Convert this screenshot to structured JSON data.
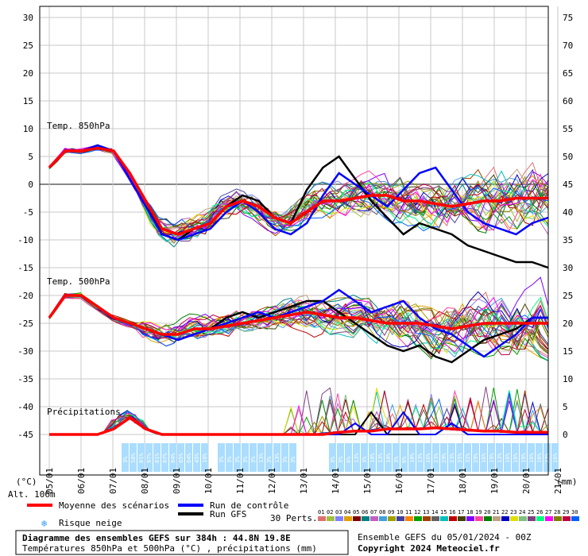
{
  "chart_data": {
    "type": "line",
    "left_axis": {
      "label": "(°C)",
      "ticks": [
        30,
        25,
        20,
        15,
        10,
        5,
        0,
        -5,
        -10,
        -15,
        -20,
        -25,
        -30,
        -35,
        -40,
        -45
      ]
    },
    "right_axis": {
      "label": "(mm)",
      "ticks": [
        75,
        70,
        65,
        60,
        55,
        50,
        45,
        40,
        35,
        30,
        25,
        20,
        15,
        10,
        5,
        0
      ]
    },
    "x_dates": [
      "05/01",
      "06/01",
      "07/01",
      "08/01",
      "09/01",
      "10/01",
      "11/01",
      "12/01",
      "13/01",
      "14/01",
      "15/01",
      "16/01",
      "17/01",
      "18/01",
      "19/01",
      "20/01",
      "21/01"
    ],
    "panel_labels": {
      "t850": "Temp. 850hPa",
      "t500": "Temp. 500hPa",
      "precip": "Précipitations"
    },
    "step_hours": 6,
    "t850": {
      "mean": [
        3,
        6,
        6,
        6.5,
        6,
        2,
        -3,
        -8,
        -9,
        -8,
        -7,
        -4,
        -3,
        -4,
        -6,
        -7,
        -5,
        -3,
        -3,
        -2.5,
        -2,
        -2,
        -3,
        -3,
        -3.5,
        -4,
        -3.5,
        -3,
        -3,
        -2.5,
        -2.5,
        -2.5
      ],
      "control": [
        3,
        6,
        6,
        7,
        6,
        1,
        -4,
        -9,
        -10,
        -9,
        -8,
        -5,
        -3,
        -5,
        -8,
        -9,
        -7,
        -2,
        2,
        0,
        -2,
        -4,
        -1,
        2,
        3,
        -1,
        -5,
        -7,
        -8,
        -9,
        -7,
        -6
      ],
      "gfs": [
        3,
        6,
        6,
        7,
        6,
        2,
        -3,
        -9,
        -10,
        -8,
        -7,
        -4,
        -2,
        -3,
        -6,
        -7,
        -1,
        3,
        5,
        1,
        -3,
        -6,
        -9,
        -7,
        -8,
        -9,
        -11,
        -12,
        -13,
        -14,
        -14,
        -15
      ]
    },
    "t500": {
      "mean": [
        -24,
        -20,
        -20,
        -22,
        -24,
        -25,
        -26,
        -27,
        -27,
        -26,
        -26,
        -25.5,
        -25,
        -24.5,
        -24,
        -23.5,
        -23,
        -23.5,
        -24,
        -24,
        -24.5,
        -25,
        -25,
        -25,
        -25.5,
        -26,
        -25.5,
        -25,
        -25,
        -25,
        -25,
        -25
      ],
      "control": [
        -24,
        -20,
        -20,
        -22,
        -24,
        -25,
        -26,
        -27,
        -28,
        -27,
        -26,
        -25,
        -24,
        -23,
        -24,
        -23,
        -22,
        -21,
        -19,
        -21,
        -23,
        -22,
        -21,
        -24,
        -26,
        -27,
        -29,
        -31,
        -29,
        -27,
        -24,
        -24
      ],
      "gfs": [
        -24,
        -20,
        -20,
        -22,
        -24,
        -25,
        -26,
        -27,
        -27,
        -26,
        -26,
        -24,
        -23,
        -24,
        -23,
        -22,
        -21,
        -21,
        -23,
        -25,
        -27,
        -29,
        -30,
        -29,
        -31,
        -32,
        -30,
        -28,
        -27,
        -26,
        -24,
        -24
      ]
    },
    "precip": {
      "mean": [
        0,
        0,
        0,
        0,
        0.5,
        1.5,
        0.5,
        0,
        0,
        0,
        0,
        0,
        0,
        0,
        0,
        0,
        0,
        0,
        0.2,
        0.3,
        0.3,
        0.5,
        0.5,
        0.5,
        0.6,
        0.5,
        0.4,
        0.3,
        0.3,
        0.2,
        0.2,
        0.2
      ],
      "control": [
        0,
        0,
        0,
        0,
        0.5,
        1.5,
        0.5,
        0,
        0,
        0,
        0,
        0,
        0,
        0,
        0,
        0,
        0,
        0,
        0,
        1,
        0,
        0,
        2,
        0,
        0,
        1,
        0,
        0,
        0,
        0,
        0,
        0
      ],
      "gfs": [
        0,
        0,
        0,
        0,
        0.5,
        1.5,
        0.5,
        0,
        0,
        0,
        0,
        0,
        0,
        0,
        0,
        0,
        0,
        0,
        0,
        0,
        2,
        0,
        0,
        0,
        0,
        1,
        0,
        0,
        0,
        0,
        0,
        0
      ]
    },
    "snow_risk": [
      {
        "day": "08/01",
        "values": [
          "3%",
          "58%",
          "81%",
          "97%",
          "81%",
          "87%",
          "84%",
          "65%",
          "64%",
          "45%",
          "10%"
        ]
      },
      {
        "day": "11/01",
        "values": [
          "3%",
          "3%",
          "3%"
        ]
      },
      {
        "day": "12/01",
        "values": [
          "3%",
          "3%",
          "13%",
          "3%",
          "13%",
          "3%",
          "3%"
        ]
      },
      {
        "day": "14/01",
        "values": [
          "3%",
          "3%",
          "6%",
          "13%"
        ]
      },
      {
        "day": "15/01",
        "values": [
          "3%",
          "10%",
          "13%",
          "10%",
          "3%",
          "6%",
          "10%",
          "13%",
          "16%",
          "23%",
          "29%",
          "23%",
          "35%",
          "32%",
          "29%",
          "16%",
          "19%",
          "13%",
          "16%",
          "16%",
          "19%",
          "16%",
          "16%",
          "23%",
          "16%"
        ]
      }
    ]
  },
  "labels": {
    "alt": "Alt. 106m",
    "mean": "Moyenne des scénarios",
    "control": "Run de contrôle",
    "gfs": "Run GFS",
    "snow": "Risque neige",
    "perts": "30 Perts.",
    "title": "Diagramme des ensembles GEFS sur 384h : 44.8N 19.8E",
    "subtitle": "Températures 850hPa et 500hPa (°C) , précipitations (mm)",
    "run": "Ensemble GEFS du 05/01/2024 - 00Z",
    "copyright": "Copyright 2024 Meteociel.fr"
  },
  "pert_numbers": [
    "01",
    "02",
    "03",
    "04",
    "05",
    "06",
    "07",
    "08",
    "09",
    "10",
    "11",
    "12",
    "13",
    "14",
    "15",
    "16",
    "17",
    "18",
    "19",
    "20",
    "21",
    "22",
    "23",
    "24",
    "25",
    "26",
    "27",
    "28",
    "29",
    "30"
  ],
  "pert_colors": [
    "#e07070",
    "#a0c040",
    "#8080ff",
    "#e0a000",
    "#800000",
    "#008080",
    "#c060c0",
    "#40a0e0",
    "#a0a000",
    "#4040a0",
    "#ff8000",
    "#00a000",
    "#a04000",
    "#606060",
    "#00c0c0",
    "#c00000",
    "#404000",
    "#8000ff",
    "#ff40a0",
    "#008000",
    "#c0a080",
    "#0000c0",
    "#e0e000",
    "#80c080",
    "#804080",
    "#00ff80",
    "#ff00ff",
    "#808000",
    "#c00040",
    "#0060ff"
  ],
  "colors": {
    "mean": "#ff0000",
    "control": "#0000ff",
    "gfs": "#000000",
    "snow_box": "#aaddff"
  }
}
